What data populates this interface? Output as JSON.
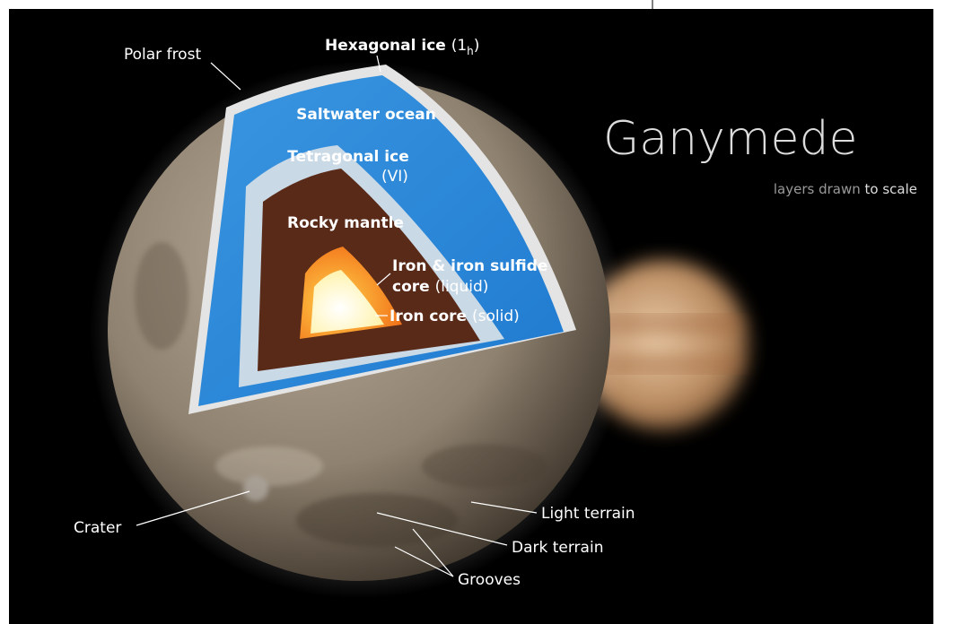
{
  "title": "Ganymede",
  "subtitle": {
    "plain": "layers drawn",
    "emphasis": "to scale"
  },
  "layers": {
    "hexagonal_ice": {
      "name": "Hexagonal ice",
      "open": "(1",
      "sub": "h",
      "close": ")"
    },
    "saltwater_ocean": "Saltwater ocean",
    "tetragonal_ice": {
      "name": "Tetragonal ice",
      "note": "(VI)"
    },
    "rocky_mantle": "Rocky mantle",
    "outer_core": {
      "line1": "Iron & iron sulfide",
      "line2": "core",
      "note": "(liquid)"
    },
    "inner_core": {
      "name": "Iron core",
      "note": "(solid)"
    }
  },
  "surface": {
    "polar_frost": "Polar frost",
    "crater": "Crater",
    "light_terrain": "Light terrain",
    "dark_terrain": "Dark terrain",
    "grooves": "Grooves"
  }
}
